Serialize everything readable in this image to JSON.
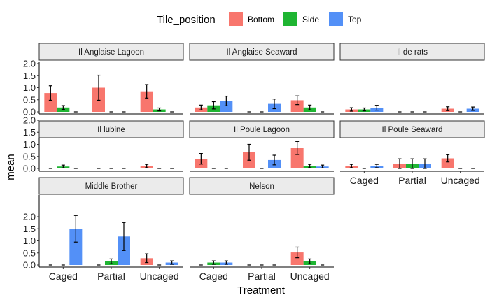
{
  "chart_data": {
    "type": "bar",
    "xlabel": "Treatment",
    "ylabel": "mean",
    "ylim": [
      0,
      2.1
    ],
    "y_ticks": [
      "0.0",
      "0.5",
      "1.0",
      "1.5",
      "2.0"
    ],
    "categories": [
      "Caged",
      "Partial",
      "Uncaged"
    ],
    "legend": {
      "title": "Tile_position",
      "placement": "top",
      "entries": [
        "Bottom",
        "Side",
        "Top"
      ]
    },
    "colors": {
      "Bottom": "#f8766d",
      "Side": "#1fb532",
      "Top": "#5390f7"
    },
    "panels": [
      {
        "name": "Il Anglaise Lagoon",
        "series": [
          {
            "name": "Bottom",
            "values": [
              0.78,
              1.0,
              0.85
            ],
            "err": [
              0.3,
              0.52,
              0.28
            ]
          },
          {
            "name": "Side",
            "values": [
              0.18,
              0.0,
              0.1
            ],
            "err": [
              0.08,
              0.0,
              0.06
            ]
          },
          {
            "name": "Top",
            "values": [
              0.0,
              0.0,
              0.0
            ],
            "err": [
              0.0,
              0.0,
              0.0
            ]
          }
        ]
      },
      {
        "name": "Il Anglaise Seaward",
        "series": [
          {
            "name": "Bottom",
            "values": [
              0.18,
              0.0,
              0.48
            ],
            "err": [
              0.1,
              0.0,
              0.18
            ]
          },
          {
            "name": "Side",
            "values": [
              0.27,
              0.0,
              0.18
            ],
            "err": [
              0.15,
              0.0,
              0.1
            ]
          },
          {
            "name": "Top",
            "values": [
              0.45,
              0.33,
              0.0
            ],
            "err": [
              0.2,
              0.2,
              0.0
            ]
          }
        ]
      },
      {
        "name": "Il de rats",
        "series": [
          {
            "name": "Bottom",
            "values": [
              0.1,
              0.0,
              0.13
            ],
            "err": [
              0.07,
              0.0,
              0.08
            ]
          },
          {
            "name": "Side",
            "values": [
              0.1,
              0.0,
              0.0
            ],
            "err": [
              0.06,
              0.0,
              0.0
            ]
          },
          {
            "name": "Top",
            "values": [
              0.17,
              0.0,
              0.13
            ],
            "err": [
              0.1,
              0.0,
              0.07
            ]
          }
        ]
      },
      {
        "name": "Il lubine",
        "series": [
          {
            "name": "Bottom",
            "values": [
              0.0,
              0.0,
              0.1
            ],
            "err": [
              0.0,
              0.0,
              0.07
            ]
          },
          {
            "name": "Side",
            "values": [
              0.08,
              0.0,
              0.0
            ],
            "err": [
              0.06,
              0.0,
              0.0
            ]
          },
          {
            "name": "Top",
            "values": [
              0.0,
              0.0,
              0.0
            ],
            "err": [
              0.0,
              0.0,
              0.0
            ]
          }
        ]
      },
      {
        "name": "Il Poule Lagoon",
        "series": [
          {
            "name": "Bottom",
            "values": [
              0.4,
              0.67,
              0.85
            ],
            "err": [
              0.22,
              0.33,
              0.27
            ]
          },
          {
            "name": "Side",
            "values": [
              0.0,
              0.0,
              0.1
            ],
            "err": [
              0.0,
              0.0,
              0.07
            ]
          },
          {
            "name": "Top",
            "values": [
              0.0,
              0.35,
              0.08
            ],
            "err": [
              0.0,
              0.2,
              0.06
            ]
          }
        ]
      },
      {
        "name": "Il Poule Seaward",
        "series": [
          {
            "name": "Bottom",
            "values": [
              0.1,
              0.2,
              0.42
            ],
            "err": [
              0.07,
              0.2,
              0.15
            ]
          },
          {
            "name": "Side",
            "values": [
              0.0,
              0.2,
              0.0
            ],
            "err": [
              0.0,
              0.2,
              0.0
            ]
          },
          {
            "name": "Top",
            "values": [
              0.1,
              0.2,
              0.0
            ],
            "err": [
              0.07,
              0.2,
              0.0
            ]
          }
        ]
      },
      {
        "name": "Middle Brother",
        "series": [
          {
            "name": "Bottom",
            "values": [
              0.0,
              0.0,
              0.28
            ],
            "err": [
              0.0,
              0.0,
              0.18
            ]
          },
          {
            "name": "Side",
            "values": [
              0.0,
              0.15,
              0.0
            ],
            "err": [
              0.0,
              0.1,
              0.0
            ]
          },
          {
            "name": "Top",
            "values": [
              1.5,
              1.18,
              0.1
            ],
            "err": [
              0.55,
              0.58,
              0.07
            ]
          }
        ]
      },
      {
        "name": "Nelson",
        "series": [
          {
            "name": "Bottom",
            "values": [
              0.0,
              0.0,
              0.52
            ],
            "err": [
              0.0,
              0.0,
              0.22
            ]
          },
          {
            "name": "Side",
            "values": [
              0.1,
              0.0,
              0.15
            ],
            "err": [
              0.07,
              0.0,
              0.1
            ]
          },
          {
            "name": "Top",
            "values": [
              0.1,
              0.0,
              0.0
            ],
            "err": [
              0.07,
              0.0,
              0.0
            ]
          }
        ]
      }
    ]
  }
}
